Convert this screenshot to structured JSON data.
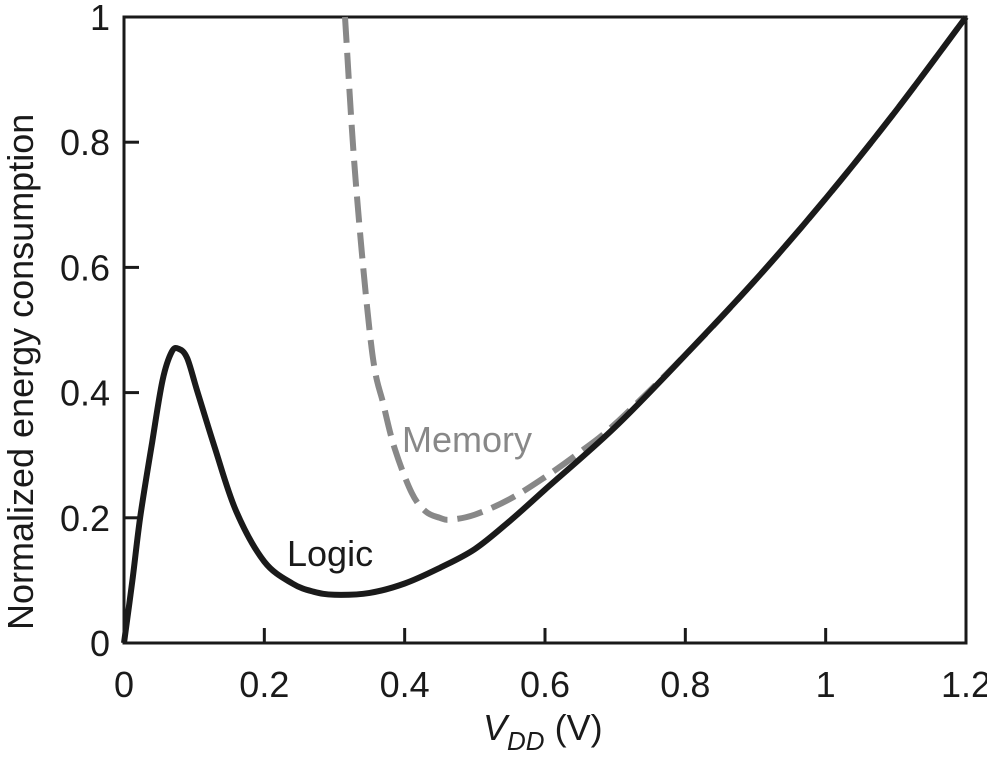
{
  "chart_data": {
    "type": "line",
    "title": "",
    "xlabel": "V_DD (V)",
    "xlabel_parts": {
      "main": "V",
      "sub": "DD",
      "unit": " (V)"
    },
    "ylabel": "Normalized energy consumption",
    "xlim": [
      0,
      1.2
    ],
    "ylim": [
      0,
      1
    ],
    "grid": false,
    "legend": "inline labels",
    "x_ticks": [
      0,
      0.2,
      0.4,
      0.6,
      0.8,
      1,
      1.2
    ],
    "x_tick_labels": [
      "0",
      "0.2",
      "0.4",
      "0.6",
      "0.8",
      "1",
      "1.2"
    ],
    "y_ticks": [
      0,
      0.2,
      0.4,
      0.6,
      0.8,
      1
    ],
    "y_tick_labels": [
      "0",
      "0.2",
      "0.4",
      "0.6",
      "0.8",
      "1"
    ],
    "series": [
      {
        "name": "Logic",
        "style": "solid",
        "color": "#1a1a1a",
        "x": [
          0.0,
          0.012,
          0.023,
          0.04,
          0.055,
          0.068,
          0.078,
          0.09,
          0.105,
          0.13,
          0.16,
          0.2,
          0.24,
          0.27,
          0.3,
          0.35,
          0.4,
          0.45,
          0.5,
          0.55,
          0.6,
          0.7,
          0.8,
          0.9,
          1.0,
          1.1,
          1.2
        ],
        "y": [
          0.0,
          0.1,
          0.2,
          0.32,
          0.42,
          0.465,
          0.47,
          0.455,
          0.4,
          0.31,
          0.21,
          0.13,
          0.095,
          0.082,
          0.077,
          0.08,
          0.095,
          0.12,
          0.15,
          0.195,
          0.245,
          0.345,
          0.46,
          0.58,
          0.71,
          0.85,
          1.0
        ]
      },
      {
        "name": "Memory",
        "style": "dashed",
        "color": "#888888",
        "x": [
          0.315,
          0.33,
          0.353,
          0.37,
          0.386,
          0.41,
          0.43,
          0.45,
          0.465,
          0.5,
          0.55,
          0.6,
          0.65,
          0.7,
          0.8,
          0.9,
          1.0,
          1.1,
          1.2
        ],
        "y": [
          1.0,
          0.74,
          0.47,
          0.38,
          0.31,
          0.24,
          0.21,
          0.2,
          0.197,
          0.205,
          0.23,
          0.265,
          0.305,
          0.35,
          0.46,
          0.58,
          0.71,
          0.85,
          1.0
        ]
      }
    ],
    "annotations": [
      {
        "text": "Logic",
        "x": 0.235,
        "y": 0.13,
        "color": "#1a1a1a"
      },
      {
        "text": "Memory",
        "x": 0.4,
        "y": 0.28,
        "color": "#888888"
      }
    ]
  },
  "labels": {
    "logic": "Logic",
    "memory": "Memory",
    "x_main": "V",
    "x_sub": "DD",
    "x_unit": " (V)",
    "y_title": "Normalized energy consumption"
  }
}
